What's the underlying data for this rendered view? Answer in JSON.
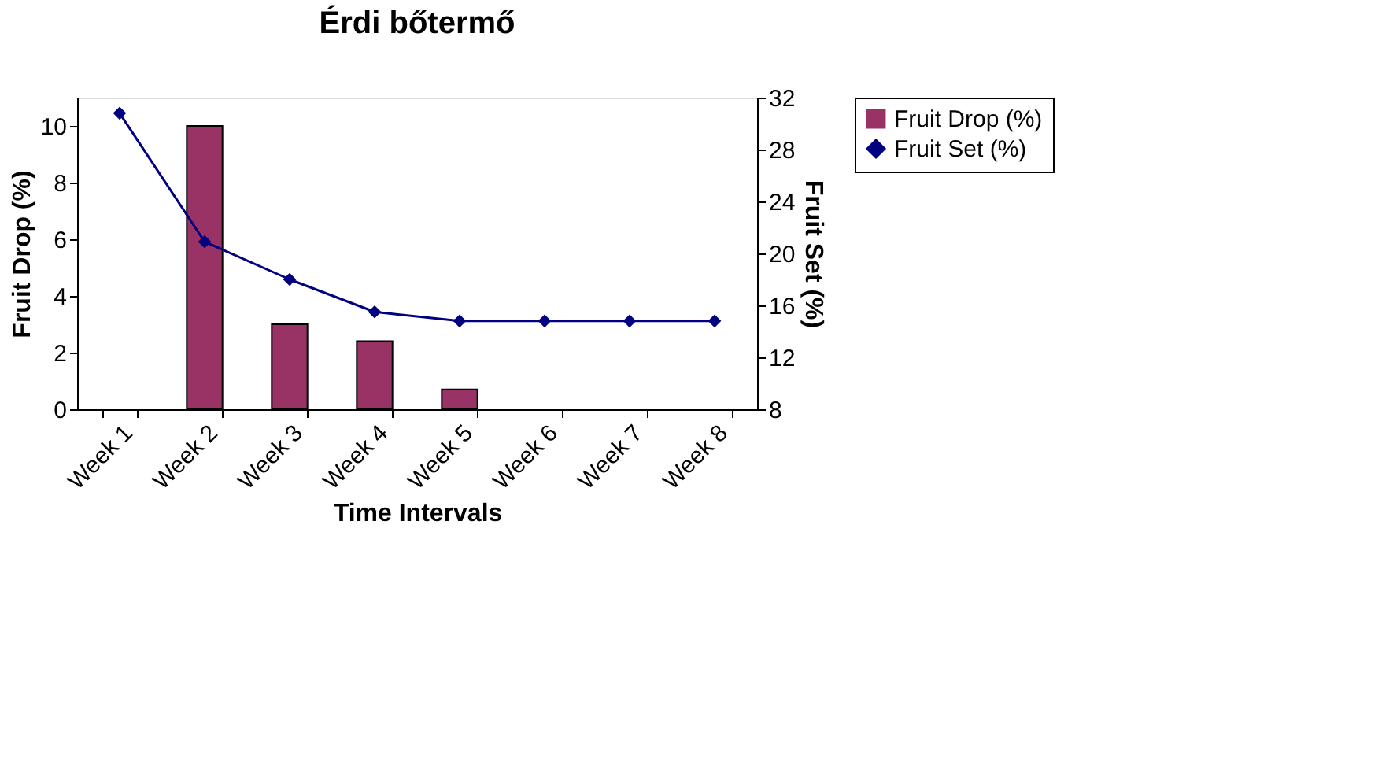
{
  "chart_data": {
    "type": "bar",
    "title": "Érdi bőtermő",
    "xlabel": "Time Intervals",
    "ylabel": "Fruit Drop (%)",
    "y2label": "Fruit Set (%)",
    "categories": [
      "Week 1",
      "Week 2",
      "Week 3",
      "Week 4",
      "Week 5",
      "Week 6",
      "Week 7",
      "Week 8"
    ],
    "series": [
      {
        "name": "Fruit Drop (%)",
        "color": "#993366",
        "values": [
          0,
          10,
          3,
          2.4,
          0.7,
          0,
          0,
          0
        ]
      },
      {
        "name": "Fruit Set (%)",
        "type": "line",
        "axis": "y2",
        "color": "#000080",
        "values": [
          30.8,
          20.9,
          18.0,
          15.5,
          14.8,
          14.8,
          14.8,
          14.8
        ]
      }
    ],
    "ylim": [
      0,
      11
    ],
    "yticks": [
      0,
      2,
      4,
      6,
      8,
      10
    ],
    "y2lim": [
      8,
      32
    ],
    "y2ticks": [
      8,
      12,
      16,
      20,
      24,
      28,
      32
    ],
    "grid": false,
    "legend": "right",
    "marker": "diamond",
    "line_style": "solid"
  }
}
